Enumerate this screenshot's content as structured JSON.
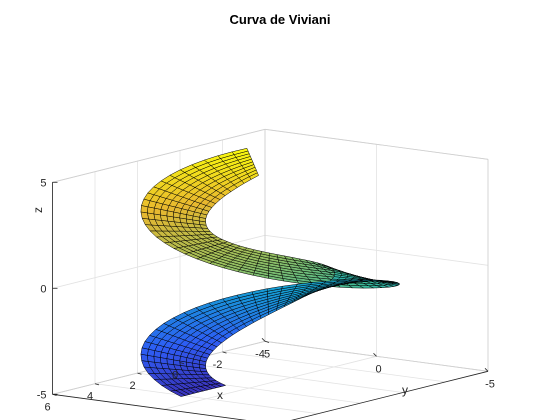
{
  "chart_data": {
    "type": "surface",
    "title": "Curva de Viviani",
    "xlabel": "x",
    "ylabel": "y",
    "zlabel": "z",
    "xlim": [
      -4,
      6
    ],
    "ylim": [
      -5,
      5
    ],
    "zlim": [
      -5,
      5
    ],
    "x_ticks": [
      "-4",
      "-2",
      "0",
      "2",
      "4",
      "6"
    ],
    "y_ticks": [
      "5",
      "0",
      "-5"
    ],
    "z_ticks": [
      "-5",
      "0",
      "5"
    ],
    "grid": true,
    "surface": {
      "description_free": true,
      "colormap": [
        "#3e26a8",
        "#2e5df5",
        "#149fd3",
        "#36b89c",
        "#95bd5f",
        "#e8b82f",
        "#f9fb0e"
      ],
      "edge_color": "#000000",
      "z_range": [
        -5,
        5
      ]
    }
  }
}
